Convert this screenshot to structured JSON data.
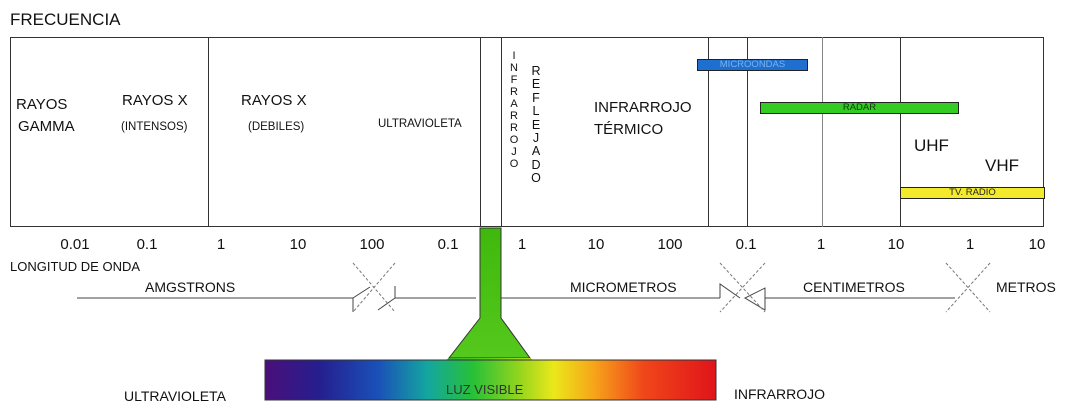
{
  "title": "FRECUENCIA",
  "regions": {
    "gamma_line1": "RAYOS",
    "gamma_line2": "GAMMA",
    "xray_intense_line1": "RAYOS X",
    "xray_intense_line2": "(INTENSOS)",
    "xray_weak_line1": "RAYOS X",
    "xray_weak_line2": "(DEBILES)",
    "ultraviolet": "ULTRAVIOLETA",
    "infrared_vertical": "INFRARROJO",
    "reflected_vertical": "REFLEJADO",
    "thermal_ir_line1": "INFRARROJO",
    "thermal_ir_line2": "TÉRMICO",
    "uhf": "UHF",
    "vhf": "VHF"
  },
  "bands": {
    "microwaves": "MICROONDAS",
    "radar": "RADAR",
    "tv_radio": "TV. RADIO"
  },
  "colors": {
    "microwaves": "#1f6fd0",
    "radar": "#33cc22",
    "tv_radio": "#f2ea2a",
    "stem_green": "#44c211"
  },
  "scale": {
    "ticks": [
      "0.01",
      "0.1",
      "1",
      "10",
      "100",
      "0.1",
      "1",
      "10",
      "100",
      "0.1",
      "1",
      "10",
      "1",
      "10"
    ],
    "label": "LONGITUD DE ONDA"
  },
  "units": {
    "angstroms": "AMGSTRONS",
    "micrometers": "MICROMETROS",
    "centimeters": "CENTIMETROS",
    "meters": "METROS"
  },
  "visible": {
    "label": "LUZ VISIBLE",
    "left_label": "ULTRAVIOLETA",
    "right_label": "INFRARROJO"
  }
}
